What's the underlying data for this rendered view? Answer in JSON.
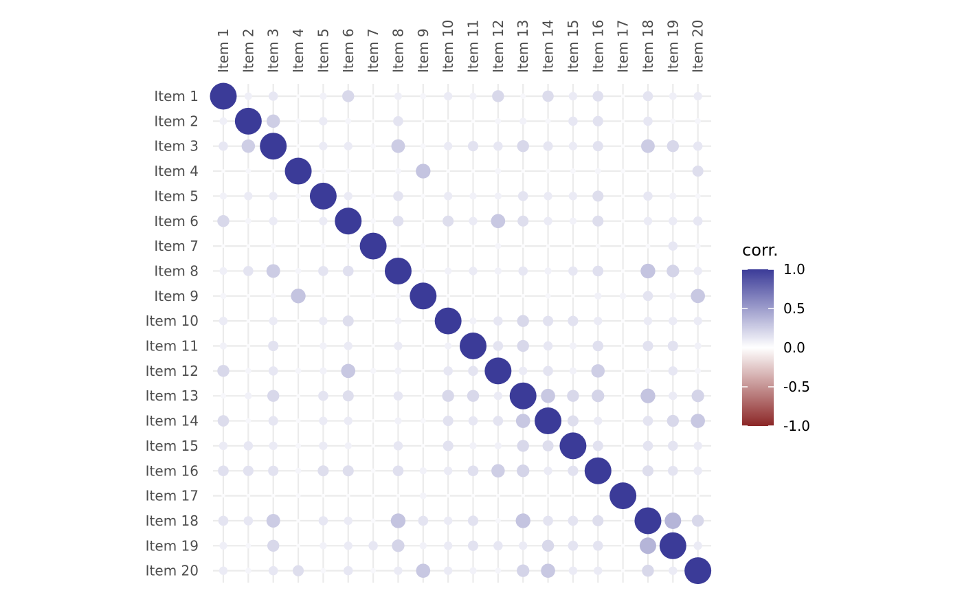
{
  "chart_data": {
    "type": "heatmap",
    "variant": "correlation-circle-matrix",
    "items": [
      "Item 1",
      "Item 2",
      "Item 3",
      "Item 4",
      "Item 5",
      "Item 6",
      "Item 7",
      "Item 8",
      "Item 9",
      "Item 10",
      "Item 11",
      "Item 12",
      "Item 13",
      "Item 14",
      "Item 15",
      "Item 16",
      "Item 17",
      "Item 18",
      "Item 19",
      "Item 20"
    ],
    "x_axis_position": "top",
    "x_label_rotation": "vertical",
    "grid": true,
    "matrix": [
      [
        1.0,
        0.08,
        0.12,
        0.02,
        0.07,
        0.2,
        0.02,
        0.08,
        0.05,
        0.1,
        0.07,
        0.2,
        0.04,
        0.18,
        0.1,
        0.16,
        0.02,
        0.14,
        0.08,
        0.1
      ],
      [
        0.08,
        1.0,
        0.25,
        0.04,
        0.1,
        0.05,
        0.02,
        0.14,
        0.02,
        0.02,
        0.02,
        0.05,
        0.07,
        0.04,
        0.12,
        0.15,
        0.02,
        0.12,
        0.04,
        0.05
      ],
      [
        0.12,
        0.25,
        1.0,
        0.02,
        0.1,
        0.1,
        0.04,
        0.26,
        0.04,
        0.1,
        0.15,
        0.12,
        0.2,
        0.13,
        0.1,
        0.15,
        0.02,
        0.26,
        0.2,
        0.12
      ],
      [
        0.02,
        0.04,
        0.02,
        1.0,
        0.04,
        0.04,
        0.02,
        0.05,
        0.3,
        0.02,
        0.02,
        0.05,
        0.02,
        0.03,
        0.04,
        0.05,
        0.03,
        0.02,
        0.02,
        0.17
      ],
      [
        0.07,
        0.1,
        0.1,
        0.04,
        1.0,
        0.1,
        0.04,
        0.14,
        0.03,
        0.1,
        0.07,
        0.07,
        0.14,
        0.1,
        0.1,
        0.17,
        0.02,
        0.12,
        0.07,
        0.04
      ],
      [
        0.2,
        0.05,
        0.1,
        0.04,
        0.1,
        1.0,
        0.04,
        0.16,
        0.02,
        0.17,
        0.1,
        0.28,
        0.17,
        0.1,
        0.07,
        0.17,
        0.02,
        0.1,
        0.1,
        0.12
      ],
      [
        0.02,
        0.02,
        0.04,
        0.02,
        0.04,
        0.04,
        1.0,
        0.03,
        0.04,
        0.02,
        0.02,
        0.05,
        0.02,
        0.02,
        0.02,
        0.03,
        0.02,
        0.03,
        0.12,
        0.04
      ],
      [
        0.08,
        0.14,
        0.26,
        0.05,
        0.14,
        0.16,
        0.03,
        1.0,
        0.04,
        0.07,
        0.1,
        0.07,
        0.12,
        0.07,
        0.12,
        0.16,
        0.02,
        0.3,
        0.22,
        0.1
      ],
      [
        0.05,
        0.02,
        0.04,
        0.3,
        0.03,
        0.02,
        0.04,
        0.04,
        1.0,
        0.02,
        0.02,
        0.02,
        0.02,
        0.04,
        0.02,
        0.07,
        0.06,
        0.14,
        0.07,
        0.28
      ],
      [
        0.1,
        0.02,
        0.1,
        0.02,
        0.1,
        0.17,
        0.02,
        0.07,
        0.02,
        1.0,
        0.07,
        0.12,
        0.2,
        0.15,
        0.15,
        0.1,
        0.02,
        0.1,
        0.1,
        0.1
      ],
      [
        0.07,
        0.02,
        0.15,
        0.02,
        0.07,
        0.1,
        0.02,
        0.1,
        0.02,
        0.07,
        1.0,
        0.14,
        0.2,
        0.12,
        0.07,
        0.16,
        0.02,
        0.15,
        0.15,
        0.07
      ],
      [
        0.2,
        0.05,
        0.12,
        0.05,
        0.07,
        0.28,
        0.05,
        0.07,
        0.02,
        0.12,
        0.14,
        1.0,
        0.1,
        0.14,
        0.07,
        0.25,
        0.02,
        0.04,
        0.12,
        0.05
      ],
      [
        0.04,
        0.07,
        0.2,
        0.02,
        0.14,
        0.17,
        0.02,
        0.12,
        0.02,
        0.2,
        0.2,
        0.1,
        1.0,
        0.28,
        0.2,
        0.22,
        0.02,
        0.3,
        0.1,
        0.22
      ],
      [
        0.18,
        0.04,
        0.13,
        0.03,
        0.1,
        0.1,
        0.02,
        0.07,
        0.04,
        0.15,
        0.12,
        0.14,
        0.28,
        1.0,
        0.17,
        0.1,
        0.02,
        0.14,
        0.2,
        0.28
      ],
      [
        0.1,
        0.12,
        0.1,
        0.04,
        0.1,
        0.07,
        0.02,
        0.12,
        0.02,
        0.15,
        0.07,
        0.07,
        0.2,
        0.17,
        1.0,
        0.15,
        0.02,
        0.14,
        0.14,
        0.1
      ],
      [
        0.16,
        0.15,
        0.15,
        0.05,
        0.17,
        0.17,
        0.03,
        0.16,
        0.07,
        0.1,
        0.16,
        0.25,
        0.22,
        0.1,
        0.15,
        1.0,
        0.02,
        0.17,
        0.14,
        0.1
      ],
      [
        0.02,
        0.02,
        0.02,
        0.03,
        0.02,
        0.02,
        0.02,
        0.02,
        0.06,
        0.02,
        0.02,
        0.02,
        0.02,
        0.02,
        0.02,
        0.02,
        1.0,
        0.02,
        0.02,
        0.02
      ],
      [
        0.14,
        0.12,
        0.26,
        0.02,
        0.12,
        0.1,
        0.03,
        0.3,
        0.14,
        0.1,
        0.15,
        0.04,
        0.3,
        0.14,
        0.14,
        0.17,
        0.02,
        1.0,
        0.38,
        0.2
      ],
      [
        0.08,
        0.04,
        0.2,
        0.02,
        0.07,
        0.1,
        0.12,
        0.22,
        0.07,
        0.1,
        0.15,
        0.12,
        0.1,
        0.2,
        0.14,
        0.14,
        0.02,
        0.38,
        1.0,
        0.1
      ],
      [
        0.1,
        0.05,
        0.12,
        0.17,
        0.04,
        0.12,
        0.04,
        0.1,
        0.28,
        0.1,
        0.07,
        0.05,
        0.22,
        0.28,
        0.1,
        0.1,
        0.02,
        0.2,
        0.1,
        1.0
      ]
    ],
    "legend": {
      "title": "corr.",
      "position": "right",
      "range": [
        -1.0,
        1.0
      ],
      "breaks": [
        1.0,
        0.5,
        0.0,
        -0.5,
        -1.0
      ],
      "break_labels": [
        "1.0",
        "0.5",
        "0.0",
        "-0.5",
        "-1.0"
      ],
      "colors": {
        "high": "#3b3b98",
        "mid": "#ffffff",
        "low": "#8b2626"
      }
    }
  }
}
